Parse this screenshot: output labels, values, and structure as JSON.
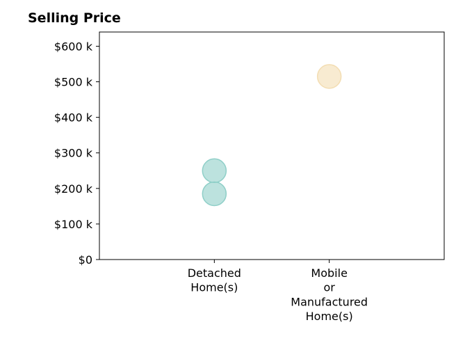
{
  "chart_data": {
    "type": "scatter",
    "title": "Selling Price",
    "xlabel": "",
    "ylabel": "",
    "categories": [
      [
        "Detached",
        "Home(s)"
      ],
      [
        "Mobile",
        "or",
        "Manufactured",
        "Home(s)"
      ]
    ],
    "xlim": [
      -1,
      2
    ],
    "ylim": [
      0,
      640000
    ],
    "yticks": [
      0,
      100000,
      200000,
      300000,
      400000,
      500000,
      600000
    ],
    "ytick_labels": [
      "$0",
      "$100 k",
      "$200 k",
      "$300 k",
      "$400 k",
      "$500 k",
      "$600 k"
    ],
    "grid": false,
    "points": [
      {
        "category": 0,
        "value": 250000,
        "color": "#8fcfc8"
      },
      {
        "category": 0,
        "value": 185000,
        "color": "#8fcfc8"
      },
      {
        "category": 1,
        "value": 515000,
        "color": "#f3ddb2"
      }
    ]
  }
}
